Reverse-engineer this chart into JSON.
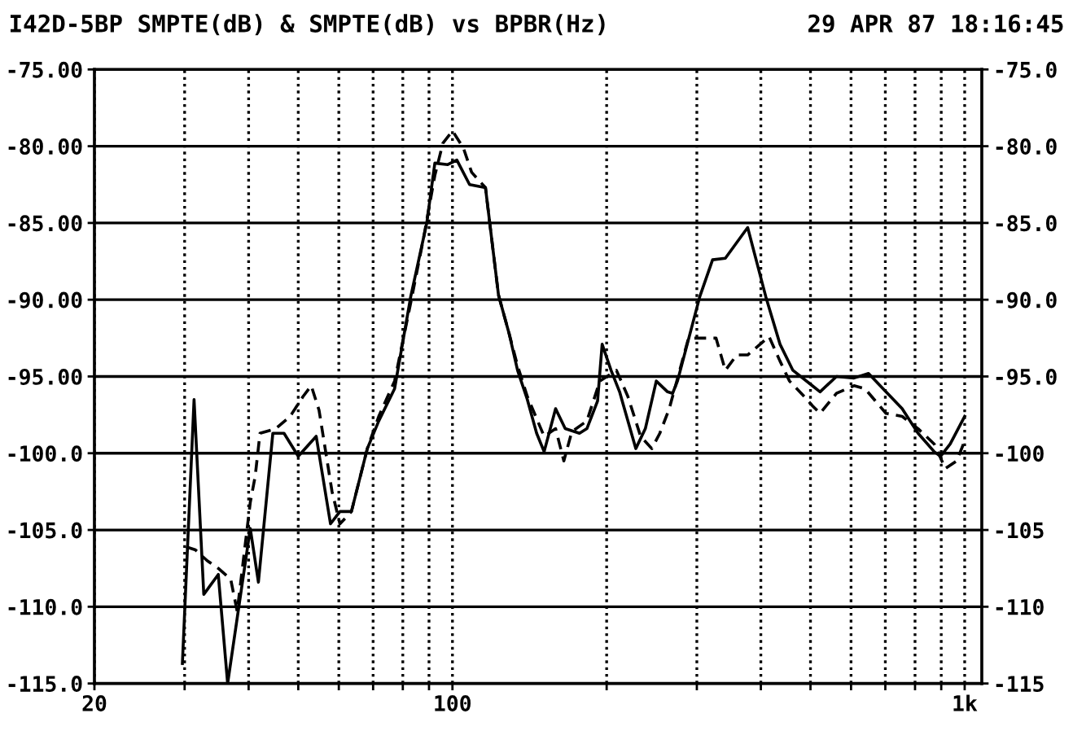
{
  "chart_data": {
    "type": "line",
    "title": "I42D-5BP SMPTE(dB) & SMPTE(dB) vs BPBR(Hz)",
    "subtitle": "29 APR 87 18:16:45",
    "log": "x",
    "xlim": [
      20,
      1080
    ],
    "xticks": [
      20,
      {
        "value": 30,
        "label": null
      },
      {
        "value": 40,
        "label": null
      },
      {
        "value": 50,
        "label": null
      },
      {
        "value": 60,
        "label": null
      },
      {
        "value": 70,
        "label": null
      },
      {
        "value": 80,
        "label": null
      },
      {
        "value": 90,
        "label": null
      },
      100,
      {
        "value": 200,
        "label": null
      },
      {
        "value": 300,
        "label": null
      },
      {
        "value": 400,
        "label": null
      },
      {
        "value": 500,
        "label": null
      },
      {
        "value": 600,
        "label": null
      },
      {
        "value": 700,
        "label": null
      },
      {
        "value": 800,
        "label": null
      },
      {
        "value": 900,
        "label": null
      },
      {
        "value": 1000,
        "label": "1k"
      }
    ],
    "ylim": [
      -115,
      -75
    ],
    "yticks": [
      {
        "value": -75,
        "label": "-75.00"
      },
      {
        "value": -80,
        "label": "-80.00"
      },
      {
        "value": -85,
        "label": "-85.00"
      },
      {
        "value": -90,
        "label": "-90.00"
      },
      {
        "value": -95,
        "label": "-95.00"
      },
      {
        "value": -100,
        "label": "-100.0"
      },
      {
        "value": -105,
        "label": "-105.0"
      },
      {
        "value": -110,
        "label": "-110.0"
      },
      {
        "value": -115,
        "label": "-115.0"
      }
    ],
    "y2lim": [
      -115,
      -75
    ],
    "y2ticks": [
      {
        "value": -75,
        "label": "-75.0"
      },
      {
        "value": -80,
        "label": "-80.0"
      },
      {
        "value": -85,
        "label": "-85.0"
      },
      {
        "value": -90,
        "label": "-90.0"
      },
      {
        "value": -95,
        "label": "-95.0"
      },
      {
        "value": -100,
        "label": "-100"
      },
      {
        "value": -105,
        "label": "-105"
      },
      {
        "value": -110,
        "label": "-110"
      },
      {
        "value": -115,
        "label": "-115"
      }
    ],
    "grid": true,
    "series": [
      {
        "color": "#000000",
        "line_style": "solid",
        "x": [
          29.7,
          31.3,
          32.7,
          34.9,
          36.4,
          40.3,
          41.8,
          44.6,
          46.9,
          50,
          54.2,
          57.8,
          60.3,
          63.5,
          68.2,
          71.8,
          77.1,
          82.9,
          89.1,
          92.4,
          97.9,
          102,
          108,
          116,
          123,
          129,
          134,
          140,
          146,
          151,
          159,
          166,
          177,
          183,
          192,
          196,
          204,
          212,
          228,
          238,
          250,
          263,
          269,
          275,
          304,
          322,
          341,
          377,
          409,
          436,
          462,
          504,
          522,
          562,
          608,
          649,
          702,
          755,
          811,
          872,
          897,
          937,
          1000
        ],
        "values": [
          -113.7,
          -96.5,
          -109.2,
          -107.9,
          -115,
          -104.9,
          -108.4,
          -98.7,
          -98.7,
          -100.2,
          -98.9,
          -104.6,
          -103.8,
          -103.8,
          -99.7,
          -97.9,
          -95.8,
          -89.8,
          -85.0,
          -81.1,
          -81.2,
          -80.9,
          -82.5,
          -82.7,
          -89.7,
          -92.2,
          -94.6,
          -96.5,
          -98.7,
          -99.9,
          -97.1,
          -98.4,
          -98.7,
          -98.4,
          -96.6,
          -92.9,
          -94.6,
          -96.0,
          -99.7,
          -98.4,
          -95.3,
          -96.0,
          -96.1,
          -95.3,
          -89.8,
          -87.4,
          -87.3,
          -85.3,
          -89.8,
          -92.9,
          -94.6,
          -95.6,
          -96.0,
          -95.0,
          -95.1,
          -94.8,
          -96.0,
          -97.1,
          -98.7,
          -99.9,
          -100.2,
          -99.4,
          -97.6
        ]
      },
      {
        "color": "#000000",
        "line_style": "dashed",
        "x": [
          30.2,
          31.5,
          33.2,
          34.9,
          36.9,
          38.0,
          40.3,
          41.2,
          42.1,
          45.2,
          48.2,
          51.1,
          53,
          54.9,
          58.2,
          60.3,
          63.5,
          68.2,
          71.8,
          77.1,
          82.9,
          87.8,
          92.4,
          95.8,
          100,
          105,
          109,
          116,
          123,
          129,
          134,
          140,
          151,
          159,
          165,
          171,
          183,
          194,
          209,
          220,
          233,
          245,
          254,
          265,
          289,
          304,
          327,
          341,
          359,
          377,
          415,
          436,
          455,
          486,
          504,
          522,
          562,
          608,
          639,
          702,
          755,
          811,
          872,
          917,
          965,
          1000
        ],
        "values": [
          -106.1,
          -106.3,
          -107.0,
          -107.5,
          -108.2,
          -110.3,
          -103.2,
          -101.5,
          -98.7,
          -98.4,
          -97.6,
          -96.3,
          -95.6,
          -97.2,
          -102.5,
          -104.6,
          -103.8,
          -99.7,
          -97.6,
          -95.3,
          -90.2,
          -86.0,
          -81.9,
          -79.8,
          -79.0,
          -80.1,
          -81.7,
          -82.7,
          -89.7,
          -92.2,
          -94.3,
          -96.3,
          -98.9,
          -98.4,
          -100.5,
          -98.6,
          -97.9,
          -95.3,
          -94.6,
          -96.3,
          -98.9,
          -99.7,
          -98.7,
          -97.1,
          -92.5,
          -92.5,
          -92.5,
          -94.6,
          -93.6,
          -93.6,
          -92.4,
          -94.0,
          -95.3,
          -96.3,
          -96.9,
          -97.4,
          -96.1,
          -95.6,
          -95.8,
          -97.4,
          -97.6,
          -98.4,
          -99.4,
          -101.0,
          -100.5,
          -99.2
        ]
      }
    ]
  }
}
